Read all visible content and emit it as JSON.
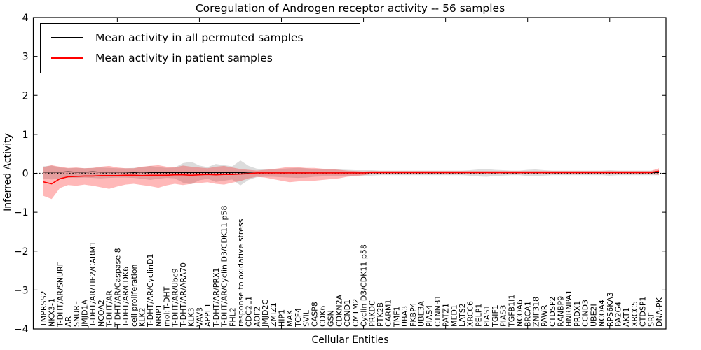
{
  "title": "Coregulation of Androgen receptor activity -- 56 samples",
  "axes": {
    "xlabel": "Cellular Entities",
    "ylabel": "Inferred Activity",
    "yticks": [
      "4",
      "3",
      "2",
      "1",
      "0",
      "−1",
      "−2",
      "−3",
      "−4"
    ],
    "ylim": [
      -4,
      4
    ]
  },
  "legend": {
    "items": [
      {
        "label": "Mean activity in all permuted samples",
        "color": "#000000"
      },
      {
        "label": "Mean activity in patient samples",
        "color": "#ff0000"
      }
    ]
  },
  "colors": {
    "permuted_line": "#000000",
    "patient_line": "#ff0000",
    "permuted_band": "rgba(128,128,128,0.28)",
    "patient_band": "rgba(255,0,0,0.28)",
    "zero_line": "#000000"
  },
  "chart_data": {
    "type": "line",
    "title": "Coregulation of Androgen receptor activity -- 56 samples",
    "xlabel": "Cellular Entities",
    "ylabel": "Inferred Activity",
    "ylim": [
      -4,
      4
    ],
    "grid": false,
    "zero_line": true,
    "legend_position": "upper left",
    "categories": [
      "TMPRSS2",
      "NKX3-1",
      "T-DHT/AR/SNURF",
      "AR",
      "SNURF",
      "JMJD1A",
      "T-DHT/AR/TIF2/CARM1",
      "NCOA2",
      "T-DHT/AR",
      "T-DHT/AR/Caspase 8",
      "T-DHT/AR/CDK6",
      "cell proliferation",
      "KLK2",
      "T-DHT/AR/CyclinD1",
      "NRIP1",
      "mol:T-DHT",
      "T-DHT/AR/Ubc9",
      "T-DHT/AR/ARA70",
      "KLK3",
      "VAV3",
      "APPL1",
      "T-DHT/AR/PRX1",
      "T-DHT/AR/Cyclin D3/CDK11 p58",
      "FHL2",
      "response to oxidative stress",
      "CDC2L1",
      "AOF2",
      "JMJD2C",
      "ZMIZ1",
      "HIP1",
      "MAK",
      "TCF4",
      "SVIL",
      "CASP8",
      "CDK6",
      "GSN",
      "CDKN2A",
      "CCND1",
      "CMTM2",
      "Cyclin D3/CDK11 p58",
      "PRKDC",
      "PTK2B",
      "CARM1",
      "TMF1",
      "UBA3",
      "FKBP4",
      "UBE3A",
      "PIAS4",
      "CTNNB1",
      "PATZ1",
      "MED1",
      "LATS2",
      "XRCC6",
      "PELP1",
      "PIAS1",
      "TGIF1",
      "PIAS3",
      "TGFB1I1",
      "NCOA6",
      "BRCA1",
      "ZNF318",
      "PAWR",
      "CTDSP2",
      "RANBP9",
      "HNRNPA1",
      "PRDX1",
      "CCND3",
      "UBE2I",
      "NCOA4",
      "RPS6KA3",
      "PA2G4",
      "AKT1",
      "XRCC5",
      "CTDSP1",
      "SRF",
      "DNA-PK"
    ],
    "series": [
      {
        "name": "Mean activity in all permuted samples",
        "color": "#000000",
        "linewidth": 1.2,
        "values": [
          0.03,
          0.03,
          0.03,
          0.04,
          0.03,
          0.03,
          0.04,
          0.03,
          0.03,
          0.03,
          0.03,
          0.02,
          0.03,
          0.02,
          0.02,
          0.02,
          0.02,
          0.02,
          0.02,
          0.02,
          0.02,
          0.02,
          0.02,
          0.02,
          0.02,
          0.01,
          0.01,
          0.01,
          0.01,
          0.01,
          0.01,
          0.01,
          0.01,
          0.01,
          0.01,
          0.01,
          0.01,
          0.01,
          0.01,
          0.01,
          0.02,
          0.02,
          0.02,
          0.02,
          0.02,
          0.02,
          0.02,
          0.02,
          0.02,
          0.02,
          0.02,
          0.02,
          0.02,
          0.02,
          0.02,
          0.02,
          0.02,
          0.02,
          0.02,
          0.02,
          0.02,
          0.02,
          0.02,
          0.02,
          0.02,
          0.02,
          0.02,
          0.02,
          0.02,
          0.02,
          0.02,
          0.02,
          0.02,
          0.02,
          0.02,
          0.02
        ],
        "band_lower": [
          -0.14,
          -0.16,
          -0.13,
          -0.11,
          -0.12,
          -0.11,
          -0.12,
          -0.13,
          -0.12,
          -0.11,
          -0.11,
          -0.12,
          -0.14,
          -0.17,
          -0.14,
          -0.12,
          -0.13,
          -0.24,
          -0.28,
          -0.18,
          -0.14,
          -0.22,
          -0.19,
          -0.16,
          -0.31,
          -0.17,
          -0.1,
          -0.09,
          -0.09,
          -0.1,
          -0.11,
          -0.12,
          -0.11,
          -0.09,
          -0.08,
          -0.08,
          -0.08,
          -0.07,
          -0.06,
          -0.06,
          -0.06,
          -0.05,
          -0.05,
          -0.05,
          -0.05,
          -0.05,
          -0.05,
          -0.05,
          -0.05,
          -0.05,
          -0.05,
          -0.05,
          -0.06,
          -0.08,
          -0.09,
          -0.07,
          -0.06,
          -0.05,
          -0.05,
          -0.07,
          -0.08,
          -0.06,
          -0.05,
          -0.05,
          -0.05,
          -0.05,
          -0.05,
          -0.05,
          -0.05,
          -0.06,
          -0.05,
          -0.05,
          -0.05,
          -0.05,
          -0.05,
          -0.05
        ],
        "band_upper": [
          0.18,
          0.2,
          0.15,
          0.13,
          0.14,
          0.13,
          0.14,
          0.15,
          0.14,
          0.13,
          0.13,
          0.14,
          0.16,
          0.19,
          0.16,
          0.14,
          0.15,
          0.26,
          0.3,
          0.2,
          0.16,
          0.24,
          0.21,
          0.18,
          0.33,
          0.19,
          0.12,
          0.11,
          0.11,
          0.12,
          0.13,
          0.14,
          0.13,
          0.11,
          0.1,
          0.1,
          0.1,
          0.09,
          0.08,
          0.08,
          0.08,
          0.07,
          0.07,
          0.07,
          0.07,
          0.07,
          0.07,
          0.07,
          0.07,
          0.07,
          0.07,
          0.07,
          0.08,
          0.1,
          0.11,
          0.09,
          0.08,
          0.07,
          0.07,
          0.09,
          0.1,
          0.08,
          0.07,
          0.07,
          0.07,
          0.07,
          0.07,
          0.07,
          0.07,
          0.08,
          0.07,
          0.07,
          0.07,
          0.07,
          0.07,
          0.07
        ]
      },
      {
        "name": "Mean activity in patient samples",
        "color": "#ff0000",
        "linewidth": 1.6,
        "values": [
          -0.22,
          -0.27,
          -0.14,
          -0.09,
          -0.08,
          -0.07,
          -0.07,
          -0.06,
          -0.06,
          -0.06,
          -0.05,
          -0.05,
          -0.06,
          -0.05,
          -0.05,
          -0.05,
          -0.04,
          -0.04,
          -0.05,
          -0.04,
          -0.03,
          -0.04,
          -0.03,
          -0.03,
          -0.02,
          -0.01,
          0.01,
          0.01,
          0.01,
          0.01,
          0.01,
          0.01,
          0.01,
          0.01,
          0.01,
          0.01,
          0.01,
          0.01,
          0.01,
          0.01,
          0.02,
          0.02,
          0.02,
          0.02,
          0.02,
          0.02,
          0.02,
          0.02,
          0.02,
          0.02,
          0.02,
          0.02,
          0.02,
          0.02,
          0.02,
          0.02,
          0.02,
          0.02,
          0.02,
          0.02,
          0.02,
          0.02,
          0.02,
          0.02,
          0.02,
          0.02,
          0.02,
          0.02,
          0.02,
          0.02,
          0.02,
          0.02,
          0.02,
          0.02,
          0.02,
          0.06
        ],
        "band_lower": [
          -0.58,
          -0.66,
          -0.38,
          -0.3,
          -0.32,
          -0.29,
          -0.32,
          -0.36,
          -0.4,
          -0.34,
          -0.29,
          -0.27,
          -0.3,
          -0.33,
          -0.37,
          -0.31,
          -0.27,
          -0.3,
          -0.27,
          -0.25,
          -0.23,
          -0.27,
          -0.29,
          -0.24,
          -0.2,
          -0.13,
          -0.09,
          -0.11,
          -0.15,
          -0.19,
          -0.23,
          -0.21,
          -0.19,
          -0.19,
          -0.17,
          -0.15,
          -0.13,
          -0.09,
          -0.07,
          -0.05,
          -0.02,
          -0.02,
          -0.02,
          -0.02,
          -0.02,
          -0.02,
          -0.02,
          -0.02,
          -0.02,
          -0.02,
          -0.02,
          -0.02,
          -0.02,
          -0.02,
          -0.02,
          -0.02,
          -0.02,
          -0.02,
          -0.02,
          -0.02,
          -0.02,
          -0.02,
          -0.02,
          -0.02,
          -0.02,
          -0.02,
          -0.02,
          -0.02,
          -0.02,
          -0.02,
          -0.02,
          -0.02,
          -0.02,
          -0.02,
          -0.02,
          -0.04
        ],
        "band_upper": [
          0.16,
          0.21,
          0.17,
          0.14,
          0.15,
          0.13,
          0.14,
          0.17,
          0.19,
          0.15,
          0.13,
          0.13,
          0.17,
          0.19,
          0.21,
          0.17,
          0.15,
          0.2,
          0.17,
          0.15,
          0.13,
          0.17,
          0.19,
          0.15,
          0.11,
          0.09,
          0.07,
          0.09,
          0.11,
          0.14,
          0.17,
          0.16,
          0.14,
          0.14,
          0.12,
          0.11,
          0.09,
          0.07,
          0.06,
          0.05,
          0.06,
          0.06,
          0.06,
          0.06,
          0.06,
          0.06,
          0.06,
          0.06,
          0.06,
          0.06,
          0.06,
          0.06,
          0.06,
          0.06,
          0.06,
          0.06,
          0.06,
          0.06,
          0.06,
          0.06,
          0.06,
          0.06,
          0.06,
          0.06,
          0.06,
          0.06,
          0.06,
          0.06,
          0.06,
          0.06,
          0.06,
          0.06,
          0.06,
          0.06,
          0.06,
          0.13
        ]
      }
    ]
  }
}
